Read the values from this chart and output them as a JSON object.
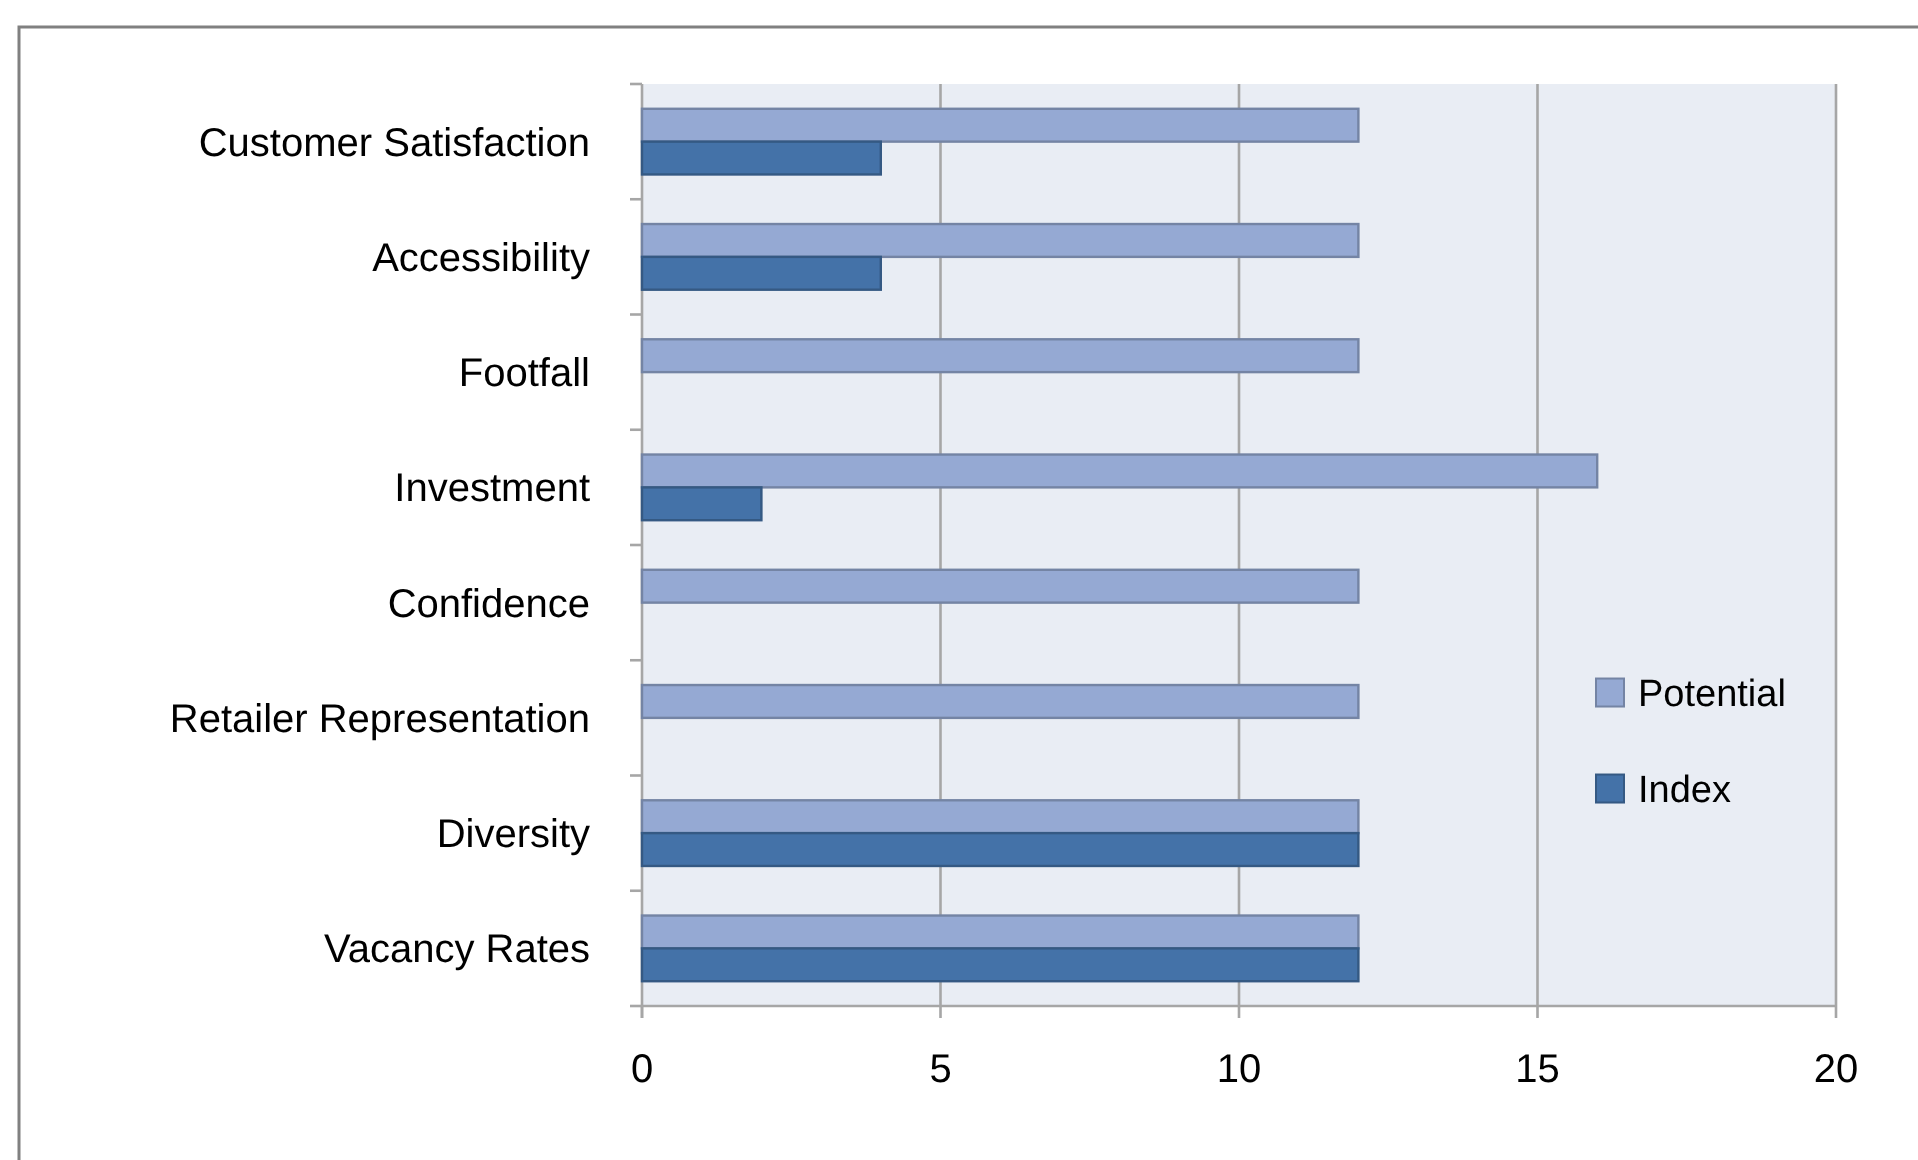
{
  "chart_data": {
    "type": "bar",
    "orientation": "horizontal",
    "categories": [
      "Customer Satisfaction",
      "Accessibility",
      "Footfall",
      "Investment",
      "Confidence",
      "Retailer Representation",
      "Diversity",
      "Vacancy Rates"
    ],
    "series": [
      {
        "name": "Potential",
        "color": "#95a9d3",
        "values": [
          12,
          12,
          12,
          16,
          12,
          12,
          12,
          12
        ]
      },
      {
        "name": "Index",
        "color": "#4472a8",
        "values": [
          4,
          4,
          null,
          2,
          null,
          null,
          12,
          12
        ]
      }
    ],
    "xlim": [
      0,
      20
    ],
    "xticks": [
      0,
      5,
      10,
      15,
      20
    ],
    "grid": "x",
    "legend": "right"
  }
}
